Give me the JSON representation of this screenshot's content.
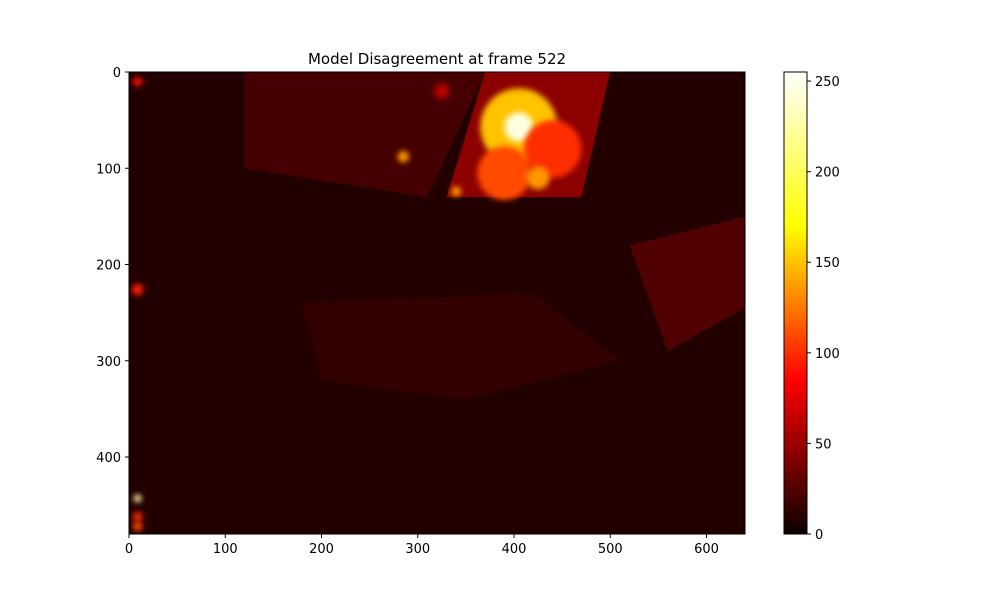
{
  "chart_data": {
    "type": "heatmap",
    "title": "Model Disagreement at frame 522",
    "xlabel": "",
    "ylabel": "",
    "colormap": "hot",
    "image_width": 640,
    "image_height": 480,
    "xlim": [
      0,
      640
    ],
    "ylim": [
      480,
      0
    ],
    "x_ticks": [
      0,
      100,
      200,
      300,
      400,
      500,
      600
    ],
    "y_ticks": [
      0,
      100,
      200,
      300,
      400
    ],
    "colorbar": {
      "vmin": 0,
      "vmax": 255,
      "ticks": [
        0,
        50,
        100,
        150,
        200,
        250
      ]
    },
    "colormap_stops": [
      "#0b0000",
      "#ff0000",
      "#ffff00",
      "#ffffff"
    ],
    "background_value": 8,
    "regions": [
      {
        "label": "overlap region",
        "points": [
          [
            120,
            0
          ],
          [
            370,
            0
          ],
          [
            310,
            130
          ],
          [
            120,
            100
          ]
        ],
        "value": 20
      },
      {
        "label": "hot region",
        "points": [
          [
            370,
            0
          ],
          [
            500,
            0
          ],
          [
            470,
            130
          ],
          [
            330,
            130
          ]
        ],
        "value": 45
      },
      {
        "label": "right mid region",
        "points": [
          [
            520,
            180
          ],
          [
            640,
            150
          ],
          [
            640,
            245
          ],
          [
            560,
            290
          ]
        ],
        "value": 24
      },
      {
        "label": "lower band",
        "points": [
          [
            180,
            240
          ],
          [
            420,
            230
          ],
          [
            510,
            300
          ],
          [
            350,
            340
          ],
          [
            200,
            320
          ]
        ],
        "value": 14
      }
    ],
    "blobs": [
      {
        "x": 405,
        "y": 57,
        "r": 40,
        "value": 150
      },
      {
        "x": 405,
        "y": 57,
        "r": 15,
        "value": 245
      },
      {
        "x": 390,
        "y": 105,
        "r": 28,
        "value": 110
      },
      {
        "x": 440,
        "y": 80,
        "r": 30,
        "value": 100
      },
      {
        "x": 425,
        "y": 110,
        "r": 12,
        "value": 135
      },
      {
        "x": 325,
        "y": 20,
        "r": 8,
        "value": 60
      },
      {
        "x": 285,
        "y": 88,
        "r": 6,
        "value": 135
      },
      {
        "x": 340,
        "y": 124,
        "r": 5,
        "value": 140
      },
      {
        "x": 9,
        "y": 10,
        "r": 5,
        "value": 90
      },
      {
        "x": 9,
        "y": 226,
        "r": 6,
        "value": 95
      },
      {
        "x": 9,
        "y": 443,
        "r": 4,
        "value": 225
      },
      {
        "x": 9,
        "y": 462,
        "r": 5,
        "value": 100
      },
      {
        "x": 9,
        "y": 472,
        "r": 5,
        "value": 110
      }
    ]
  }
}
